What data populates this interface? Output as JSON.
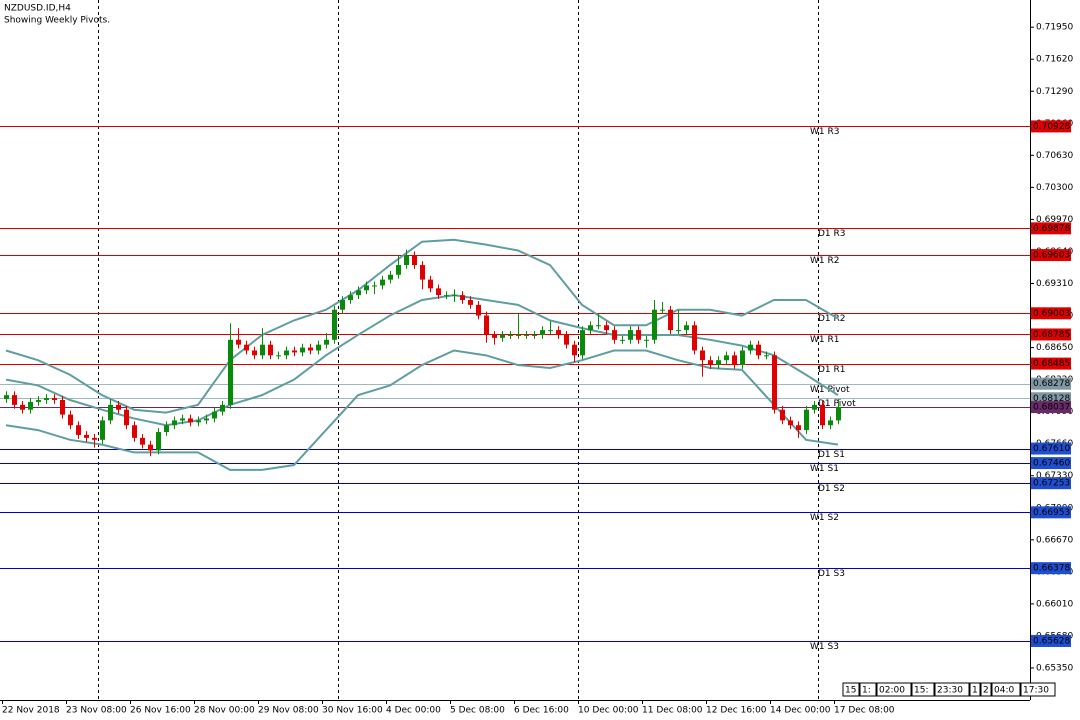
{
  "chart_data": {
    "type": "candlestick",
    "title": "NZDUSD.ID,H4",
    "subtitle": "Showing Weekly Pivots.",
    "ylim": [
      0.6502,
      0.7223
    ],
    "yticks": [
      {
        "value": 0.6535,
        "label": "0.65350"
      },
      {
        "value": 0.6568,
        "label": "0.65680"
      },
      {
        "value": 0.6601,
        "label": "0.66010"
      },
      {
        "value": 0.6634,
        "label": "0.66340"
      },
      {
        "value": 0.6667,
        "label": "0.66670"
      },
      {
        "value": 0.67,
        "label": "0.67000"
      },
      {
        "value": 0.6733,
        "label": "0.67330"
      },
      {
        "value": 0.6766,
        "label": "0.67660"
      },
      {
        "value": 0.6799,
        "label": "0.67990"
      },
      {
        "value": 0.6832,
        "label": "0.68320"
      },
      {
        "value": 0.6865,
        "label": "0.68650"
      },
      {
        "value": 0.6898,
        "label": "0.68980"
      },
      {
        "value": 0.6931,
        "label": "0.69310"
      },
      {
        "value": 0.6964,
        "label": "0.69640"
      },
      {
        "value": 0.6997,
        "label": "0.69970"
      },
      {
        "value": 0.703,
        "label": "0.70300"
      },
      {
        "value": 0.7063,
        "label": "0.70630"
      },
      {
        "value": 0.7096,
        "label": "0.70960"
      },
      {
        "value": 0.7129,
        "label": "0.71290"
      },
      {
        "value": 0.7162,
        "label": "0.71620"
      },
      {
        "value": 0.7195,
        "label": "0.71950"
      }
    ],
    "x_labels": [
      "22 Nov 2018",
      "23 Nov 08:00",
      "26 Nov 16:00",
      "28 Nov 00:00",
      "29 Nov 08:00",
      "30 Nov 16:00",
      "4 Dec 00:00",
      "5 Dec 08:00",
      "6 Dec 16:00",
      "10 Dec 00:00",
      "11 Dec 08:00",
      "12 Dec 16:00",
      "14 Dec 00:00",
      "17 Dec 08:00"
    ],
    "up_color": "#0a8a0a",
    "down_color": "#e00000",
    "candles": {
      "open": [
        0.6812,
        0.6816,
        0.6806,
        0.6801,
        0.6809,
        0.6811,
        0.6813,
        0.6811,
        0.6796,
        0.6785,
        0.6775,
        0.6772,
        0.677,
        0.679,
        0.6806,
        0.6801,
        0.6785,
        0.6772,
        0.6765,
        0.6759,
        0.6778,
        0.6785,
        0.679,
        0.6792,
        0.6788,
        0.679,
        0.6792,
        0.6799,
        0.6806,
        0.6873,
        0.6868,
        0.6862,
        0.6857,
        0.6868,
        0.6857,
        0.6857,
        0.6862,
        0.686,
        0.6865,
        0.6862,
        0.6868,
        0.6873,
        0.6904,
        0.6914,
        0.6919,
        0.6924,
        0.6929,
        0.6929,
        0.6935,
        0.694,
        0.695,
        0.696,
        0.695,
        0.6935,
        0.6926,
        0.6919,
        0.6919,
        0.6919,
        0.6914,
        0.6909,
        0.6898,
        0.6878,
        0.6875,
        0.6878,
        0.6878,
        0.6878,
        0.6878,
        0.6878,
        0.6883,
        0.6883,
        0.6878,
        0.6868,
        0.6857,
        0.6883,
        0.6888,
        0.6888,
        0.6883,
        0.6873,
        0.6873,
        0.6883,
        0.6873,
        0.6873,
        0.6904,
        0.6904,
        0.6883,
        0.6883,
        0.6888,
        0.6862,
        0.6852,
        0.6847,
        0.6852,
        0.6857,
        0.6847,
        0.6862,
        0.6868,
        0.6857,
        0.6857,
        0.6801,
        0.679,
        0.6785,
        0.678,
        0.6801,
        0.6806,
        0.6785,
        0.679
      ],
      "high": [
        0.682,
        0.682,
        0.681,
        0.6813,
        0.6815,
        0.6817,
        0.6817,
        0.6815,
        0.68,
        0.6789,
        0.6779,
        0.6776,
        0.6794,
        0.6812,
        0.681,
        0.6805,
        0.6789,
        0.6776,
        0.6769,
        0.6782,
        0.6789,
        0.6794,
        0.6796,
        0.6796,
        0.6794,
        0.6796,
        0.6803,
        0.681,
        0.689,
        0.6885,
        0.6872,
        0.6866,
        0.6885,
        0.6872,
        0.6861,
        0.6866,
        0.6866,
        0.6869,
        0.6869,
        0.6872,
        0.688,
        0.6908,
        0.6918,
        0.6923,
        0.6928,
        0.6933,
        0.6933,
        0.6939,
        0.6944,
        0.696,
        0.6966,
        0.6964,
        0.6954,
        0.6939,
        0.693,
        0.6923,
        0.6925,
        0.6923,
        0.6918,
        0.6913,
        0.6902,
        0.6882,
        0.6882,
        0.6882,
        0.69,
        0.6882,
        0.6882,
        0.6887,
        0.6892,
        0.6887,
        0.6882,
        0.6872,
        0.6887,
        0.6892,
        0.69,
        0.6892,
        0.6887,
        0.6877,
        0.6887,
        0.6887,
        0.6877,
        0.6914,
        0.6912,
        0.6908,
        0.6904,
        0.6892,
        0.6892,
        0.6866,
        0.6856,
        0.6856,
        0.6861,
        0.6861,
        0.6866,
        0.6872,
        0.6872,
        0.6861,
        0.6861,
        0.6805,
        0.6794,
        0.6789,
        0.6805,
        0.681,
        0.681,
        0.6794,
        0.6812
      ],
      "low": [
        0.6808,
        0.6802,
        0.6797,
        0.6797,
        0.6805,
        0.6807,
        0.6807,
        0.6792,
        0.6781,
        0.6771,
        0.6768,
        0.6762,
        0.6766,
        0.6786,
        0.6797,
        0.6781,
        0.6768,
        0.6761,
        0.6753,
        0.6755,
        0.6774,
        0.6781,
        0.6786,
        0.6784,
        0.6784,
        0.6786,
        0.6788,
        0.6795,
        0.6802,
        0.6864,
        0.6858,
        0.6853,
        0.6853,
        0.6853,
        0.6853,
        0.6853,
        0.6856,
        0.6856,
        0.6858,
        0.6858,
        0.6864,
        0.6869,
        0.69,
        0.691,
        0.6915,
        0.692,
        0.692,
        0.6925,
        0.6931,
        0.6936,
        0.6946,
        0.6946,
        0.6925,
        0.6922,
        0.6915,
        0.6915,
        0.6912,
        0.691,
        0.6905,
        0.6894,
        0.687,
        0.6868,
        0.6871,
        0.6874,
        0.6874,
        0.6874,
        0.6874,
        0.6874,
        0.6879,
        0.6874,
        0.6864,
        0.685,
        0.6853,
        0.6879,
        0.6884,
        0.6879,
        0.6869,
        0.6869,
        0.6869,
        0.6869,
        0.6865,
        0.6869,
        0.69,
        0.6879,
        0.6879,
        0.6879,
        0.6858,
        0.6835,
        0.6843,
        0.6843,
        0.6848,
        0.6843,
        0.6843,
        0.6858,
        0.6853,
        0.6853,
        0.6797,
        0.6786,
        0.6781,
        0.6772,
        0.6776,
        0.6797,
        0.6781,
        0.6781,
        0.6786
      ],
      "close": [
        0.6816,
        0.6806,
        0.6801,
        0.6809,
        0.6811,
        0.6813,
        0.6811,
        0.6796,
        0.6785,
        0.6775,
        0.6772,
        0.677,
        0.679,
        0.6806,
        0.6801,
        0.6785,
        0.6772,
        0.6765,
        0.6759,
        0.6778,
        0.6785,
        0.679,
        0.6792,
        0.6788,
        0.679,
        0.6792,
        0.6799,
        0.6806,
        0.6873,
        0.6868,
        0.6862,
        0.6857,
        0.6868,
        0.6857,
        0.6857,
        0.6862,
        0.686,
        0.6865,
        0.6862,
        0.6868,
        0.6873,
        0.6904,
        0.6914,
        0.6919,
        0.6924,
        0.6929,
        0.6929,
        0.6935,
        0.694,
        0.695,
        0.696,
        0.695,
        0.6935,
        0.6926,
        0.6919,
        0.6919,
        0.6919,
        0.6914,
        0.6909,
        0.6898,
        0.6878,
        0.6875,
        0.6878,
        0.6878,
        0.6878,
        0.6878,
        0.6878,
        0.6883,
        0.6883,
        0.6878,
        0.6868,
        0.6857,
        0.6883,
        0.6888,
        0.6888,
        0.6883,
        0.6873,
        0.6873,
        0.6883,
        0.6873,
        0.6873,
        0.6904,
        0.6904,
        0.6883,
        0.6883,
        0.6888,
        0.6862,
        0.6852,
        0.6847,
        0.6852,
        0.6857,
        0.6847,
        0.6862,
        0.6868,
        0.6857,
        0.6857,
        0.6801,
        0.679,
        0.6785,
        0.678,
        0.6801,
        0.6806,
        0.6785,
        0.679,
        0.6804
      ]
    },
    "bands": {
      "color": "#5f9ea0",
      "x": [
        0,
        4,
        8,
        12,
        16,
        20,
        24,
        28,
        32,
        36,
        40,
        44,
        48,
        52,
        56,
        60,
        64,
        68,
        72,
        76,
        80,
        84,
        88,
        92,
        96,
        100,
        104
      ],
      "upper": [
        0.6862,
        0.6852,
        0.6837,
        0.6816,
        0.6801,
        0.6798,
        0.6806,
        0.6852,
        0.6878,
        0.6893,
        0.6904,
        0.6924,
        0.695,
        0.6974,
        0.6976,
        0.6971,
        0.6965,
        0.695,
        0.6909,
        0.6888,
        0.6888,
        0.6904,
        0.6904,
        0.6898,
        0.6914,
        0.6914,
        0.6895
      ],
      "middle": [
        0.6832,
        0.6826,
        0.6811,
        0.6801,
        0.6792,
        0.6785,
        0.679,
        0.6806,
        0.6816,
        0.6832,
        0.6857,
        0.6878,
        0.6898,
        0.6914,
        0.6919,
        0.6914,
        0.6909,
        0.6893,
        0.6885,
        0.6878,
        0.6878,
        0.6878,
        0.6873,
        0.6867,
        0.6857,
        0.6837,
        0.6816
      ],
      "lower": [
        0.6785,
        0.678,
        0.677,
        0.6765,
        0.6757,
        0.6757,
        0.6757,
        0.6739,
        0.6739,
        0.6744,
        0.678,
        0.6816,
        0.6826,
        0.6847,
        0.6862,
        0.6857,
        0.6847,
        0.6844,
        0.6852,
        0.6862,
        0.6862,
        0.6852,
        0.6844,
        0.6842,
        0.6806,
        0.677,
        0.6765
      ]
    },
    "pivots": [
      {
        "name": "W1 R3",
        "price": {
          "value": 0.70928,
          "label": "0.70928"
        },
        "color": "#e00000",
        "box": "#e00000"
      },
      {
        "name": "D1 R3",
        "price": {
          "value": 0.69878,
          "label": "0.69878"
        },
        "color": "#e00000",
        "box": "#e00000"
      },
      {
        "name": "W1 R2",
        "price": {
          "value": 0.69603,
          "label": "0.69603"
        },
        "color": "#e00000",
        "box": "#e00000"
      },
      {
        "name": "D1 R2",
        "price": {
          "value": 0.69003,
          "label": "0.69003"
        },
        "color": "#e00000",
        "box": "#e00000"
      },
      {
        "name": "W1 R1",
        "price": {
          "value": 0.68785,
          "label": "0.68785"
        },
        "color": "#e00000",
        "box": "#e00000"
      },
      {
        "name": "D1 R1",
        "price": {
          "value": 0.68485,
          "label": "0.68485"
        },
        "color": "#e00000",
        "box": "#e00000"
      },
      {
        "name": "W1 Pivot",
        "price": {
          "value": 0.68278,
          "label": "0.68278"
        },
        "color": "#9fb8c0",
        "box": "#7f98a4"
      },
      {
        "name": "D1 Pivot",
        "price": {
          "value": 0.68128,
          "label": "0.68128"
        },
        "color": "#9fb8c0",
        "box": "#7f98a4"
      },
      {
        "name": "D1 S1",
        "price": {
          "value": 0.6761,
          "label": "0.67610"
        },
        "color": "#0000c8",
        "box": "#1f4fd0"
      },
      {
        "name": "W1 S1",
        "price": {
          "value": 0.6746,
          "label": "0.67460"
        },
        "color": "#0000c8",
        "box": "#1f4fd0"
      },
      {
        "name": "D1 S2",
        "price": {
          "value": 0.67253,
          "label": "0.67253"
        },
        "color": "#0000c8",
        "box": "#1f4fd0"
      },
      {
        "name": "W1 S2",
        "price": {
          "value": 0.66953,
          "label": "0.66953"
        },
        "color": "#0000c8",
        "box": "#1f4fd0"
      },
      {
        "name": "D1 S3",
        "price": {
          "value": 0.66378,
          "label": "0.66378"
        },
        "color": "#0000c8",
        "box": "#1f4fd0"
      },
      {
        "name": "W1 S3",
        "price": {
          "value": 0.65628,
          "label": "0.65628"
        },
        "color": "#0000c8",
        "box": "#1f4fd0"
      }
    ],
    "current_price": {
      "value": 0.68037,
      "label": "0.68037",
      "color": "#6a2a6a"
    },
    "scroll_boxes": [
      "15",
      "1:",
      "02:00",
      "15:",
      "23:30",
      "1",
      "2",
      "04:0",
      "17:30"
    ]
  }
}
